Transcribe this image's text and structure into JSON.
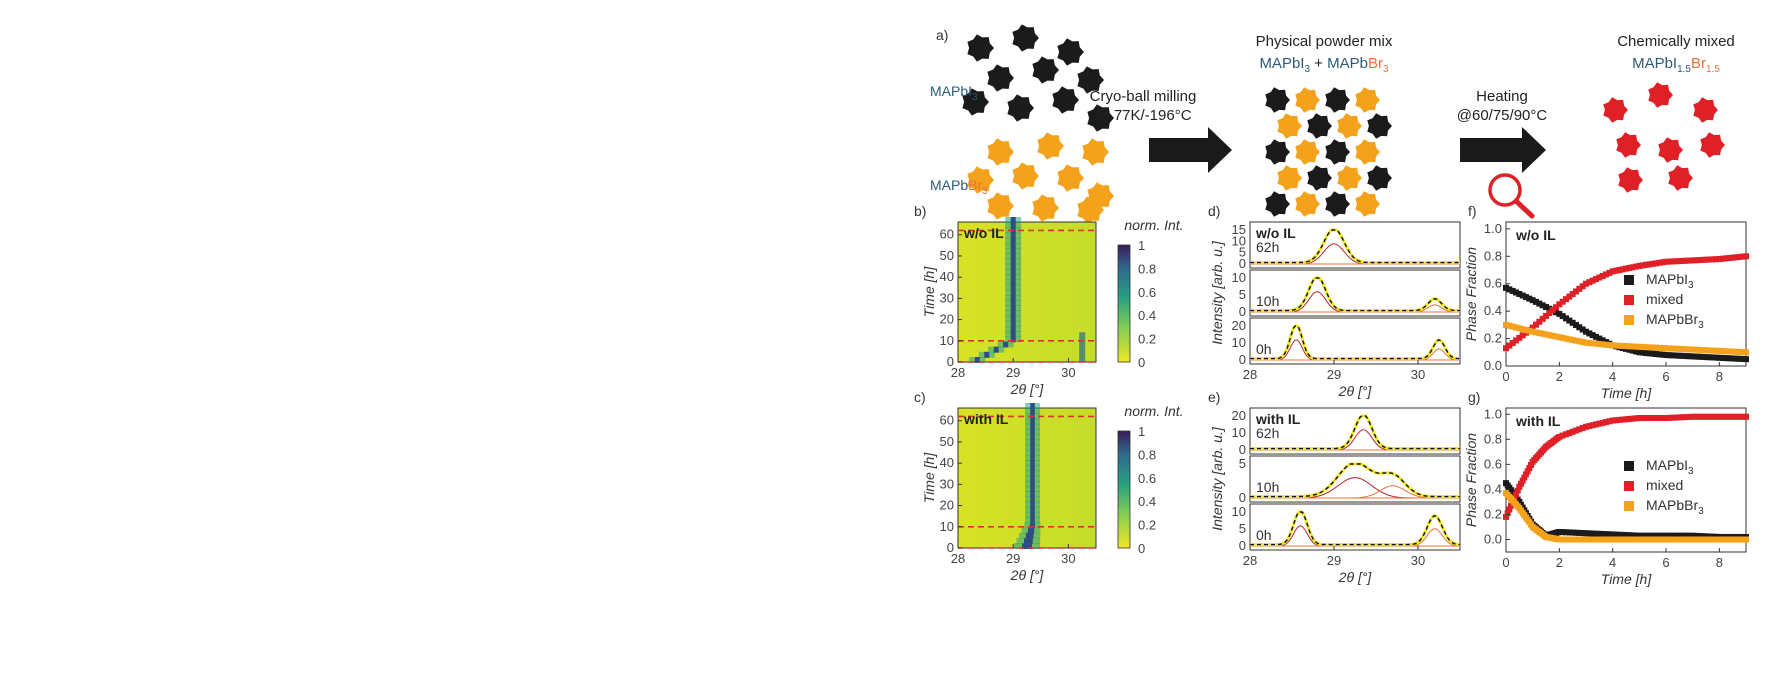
{
  "panel_letters": {
    "a": "a)",
    "b": "b)",
    "c": "c)",
    "d": "d)",
    "e": "e)",
    "f": "f)",
    "g": "g)"
  },
  "colors": {
    "iodide": "#1b1b1b",
    "bromide": "#f4a21c",
    "mixed": "#e02027",
    "arrow": "#1a1a1a",
    "mapbi3_label": "#2c5a7a",
    "br_label": "#e8713a",
    "red_dash": "#e02f3a"
  },
  "schematic": {
    "iodide_label_main": "MAPbI",
    "iodide_label_sub": "3",
    "bromide_label_main": "MAPb",
    "bromide_label_br": "Br",
    "bromide_label_sub": "3",
    "step1_line1": "Cryo-ball milling",
    "step1_line2": "@ 77K/-196°C",
    "mix_title": "Physical powder mix",
    "mix_formula": {
      "a": "MAPbI",
      "a_sub": "3",
      "plus": " + ",
      "b": "MAPb",
      "b_br": "Br",
      "b_sub": "3"
    },
    "step2_line1": "Heating",
    "step2_line2": "@60/75/90°C",
    "final_title": "Chemically mixed",
    "final_formula": {
      "a": "MAPbI",
      "a_sub": "1.5",
      "b": "Br",
      "b_sub": "1.5"
    },
    "magnifier_icon": "magnifier-icon"
  },
  "heatmaps": [
    {
      "panel": "b)",
      "label": "w/o IL",
      "colorbar_title": "norm. Int.",
      "ticks_x": [
        "28",
        "29",
        "30"
      ],
      "ticks_y": [
        "0",
        "10",
        "20",
        "30",
        "40",
        "50",
        "60"
      ],
      "cb_ticks": [
        "1",
        "0.8",
        "0.6",
        "0.4",
        "0.2",
        "0"
      ],
      "xlabel": "2θ [°]",
      "ylabel": "Time [h]",
      "dashed_times_h": [
        0,
        10,
        62
      ]
    },
    {
      "panel": "c)",
      "label": "with IL",
      "colorbar_title": "norm. Int.",
      "ticks_x": [
        "28",
        "29",
        "30"
      ],
      "ticks_y": [
        "0",
        "10",
        "20",
        "30",
        "40",
        "50",
        "60"
      ],
      "cb_ticks": [
        "1",
        "0.8",
        "0.6",
        "0.4",
        "0.2",
        "0"
      ],
      "xlabel": "2θ [°]",
      "ylabel": "Time [h]",
      "dashed_times_h": [
        0,
        10,
        62
      ]
    }
  ],
  "xrd_panels": [
    {
      "panel": "d)",
      "label": "w/o IL",
      "xlabel": "2θ [°]",
      "ylabel": "Intensity [arb. u.]",
      "ticks_x": [
        "28",
        "29",
        "30"
      ],
      "rows": [
        {
          "time": "62h",
          "yticks": [
            "0",
            "5",
            "10",
            "15"
          ]
        },
        {
          "time": "10h",
          "yticks": [
            "0",
            "5",
            "10"
          ]
        },
        {
          "time": "0h",
          "yticks": [
            "0",
            "10",
            "20"
          ]
        }
      ]
    },
    {
      "panel": "e)",
      "label": "with IL",
      "xlabel": "2θ [°]",
      "ylabel": "Intensity [arb. u.]",
      "ticks_x": [
        "28",
        "29",
        "30"
      ],
      "rows": [
        {
          "time": "62h",
          "yticks": [
            "0",
            "10",
            "20"
          ]
        },
        {
          "time": "10h",
          "yticks": [
            "0",
            "5"
          ]
        },
        {
          "time": "0h",
          "yticks": [
            "0",
            "5",
            "10"
          ]
        }
      ]
    }
  ],
  "chart_data": [
    {
      "panel": "f)",
      "type": "scatter",
      "label": "w/o IL",
      "xlabel": "Time [h]",
      "ylabel": "Phase Fraction",
      "xlim": [
        0,
        9
      ],
      "ylim": [
        0,
        1.05
      ],
      "xticks": [
        "0",
        "2",
        "4",
        "6",
        "8"
      ],
      "yticks": [
        "0.0",
        "0.2",
        "0.4",
        "0.6",
        "0.8",
        "1.0"
      ],
      "legend": [
        {
          "name": "MAPbI",
          "sub": "3",
          "color": "#1b1b1b"
        },
        {
          "name": "mixed",
          "sub": "",
          "color": "#e02027"
        },
        {
          "name": "MAPbBr",
          "sub": "3",
          "color": "#f4a21c"
        }
      ],
      "series": [
        {
          "name": "MAPbI3",
          "color": "#1b1b1b",
          "x": [
            0,
            1,
            2,
            3,
            4,
            5,
            6,
            7,
            8,
            9
          ],
          "y": [
            0.57,
            0.48,
            0.38,
            0.25,
            0.15,
            0.1,
            0.08,
            0.07,
            0.06,
            0.05
          ]
        },
        {
          "name": "mixed",
          "color": "#e02027",
          "x": [
            0,
            1,
            2,
            3,
            4,
            5,
            6,
            7,
            8,
            9
          ],
          "y": [
            0.13,
            0.28,
            0.45,
            0.6,
            0.69,
            0.73,
            0.76,
            0.77,
            0.78,
            0.8
          ]
        },
        {
          "name": "MAPbBr3",
          "color": "#f4a21c",
          "x": [
            0,
            1,
            2,
            3,
            4,
            5,
            6,
            7,
            8,
            9
          ],
          "y": [
            0.3,
            0.25,
            0.21,
            0.17,
            0.15,
            0.14,
            0.13,
            0.12,
            0.11,
            0.1
          ]
        }
      ]
    },
    {
      "panel": "g)",
      "type": "scatter",
      "label": "with IL",
      "xlabel": "Time [h]",
      "ylabel": "Phase Fraction",
      "xlim": [
        0,
        9
      ],
      "ylim": [
        -0.1,
        1.05
      ],
      "xticks": [
        "0",
        "2",
        "4",
        "6",
        "8"
      ],
      "yticks": [
        "0.0",
        "0.2",
        "0.4",
        "0.6",
        "0.8",
        "1.0"
      ],
      "legend": [
        {
          "name": "MAPbI",
          "sub": "3",
          "color": "#1b1b1b"
        },
        {
          "name": "mixed",
          "sub": "",
          "color": "#e02027"
        },
        {
          "name": "MAPbBr",
          "sub": "3",
          "color": "#f4a21c"
        }
      ],
      "series": [
        {
          "name": "MAPbI3",
          "color": "#1b1b1b",
          "x": [
            0,
            0.5,
            1,
            1.5,
            2,
            3,
            4,
            5,
            6,
            7,
            8,
            9
          ],
          "y": [
            0.45,
            0.3,
            0.12,
            0.03,
            0.06,
            0.05,
            0.04,
            0.03,
            0.03,
            0.03,
            0.02,
            0.02
          ]
        },
        {
          "name": "mixed",
          "color": "#e02027",
          "x": [
            0,
            0.5,
            1,
            1.5,
            2,
            3,
            4,
            5,
            6,
            7,
            8,
            9
          ],
          "y": [
            0.18,
            0.42,
            0.62,
            0.74,
            0.82,
            0.9,
            0.95,
            0.97,
            0.97,
            0.98,
            0.98,
            0.98
          ]
        },
        {
          "name": "MAPbBr3",
          "color": "#f4a21c",
          "x": [
            0,
            0.5,
            1,
            1.5,
            2,
            3,
            4,
            5,
            6,
            7,
            8,
            9
          ],
          "y": [
            0.37,
            0.25,
            0.1,
            0.02,
            0.0,
            0.0,
            0.0,
            0.0,
            0.0,
            0.0,
            0.0,
            0.0
          ]
        }
      ]
    }
  ]
}
